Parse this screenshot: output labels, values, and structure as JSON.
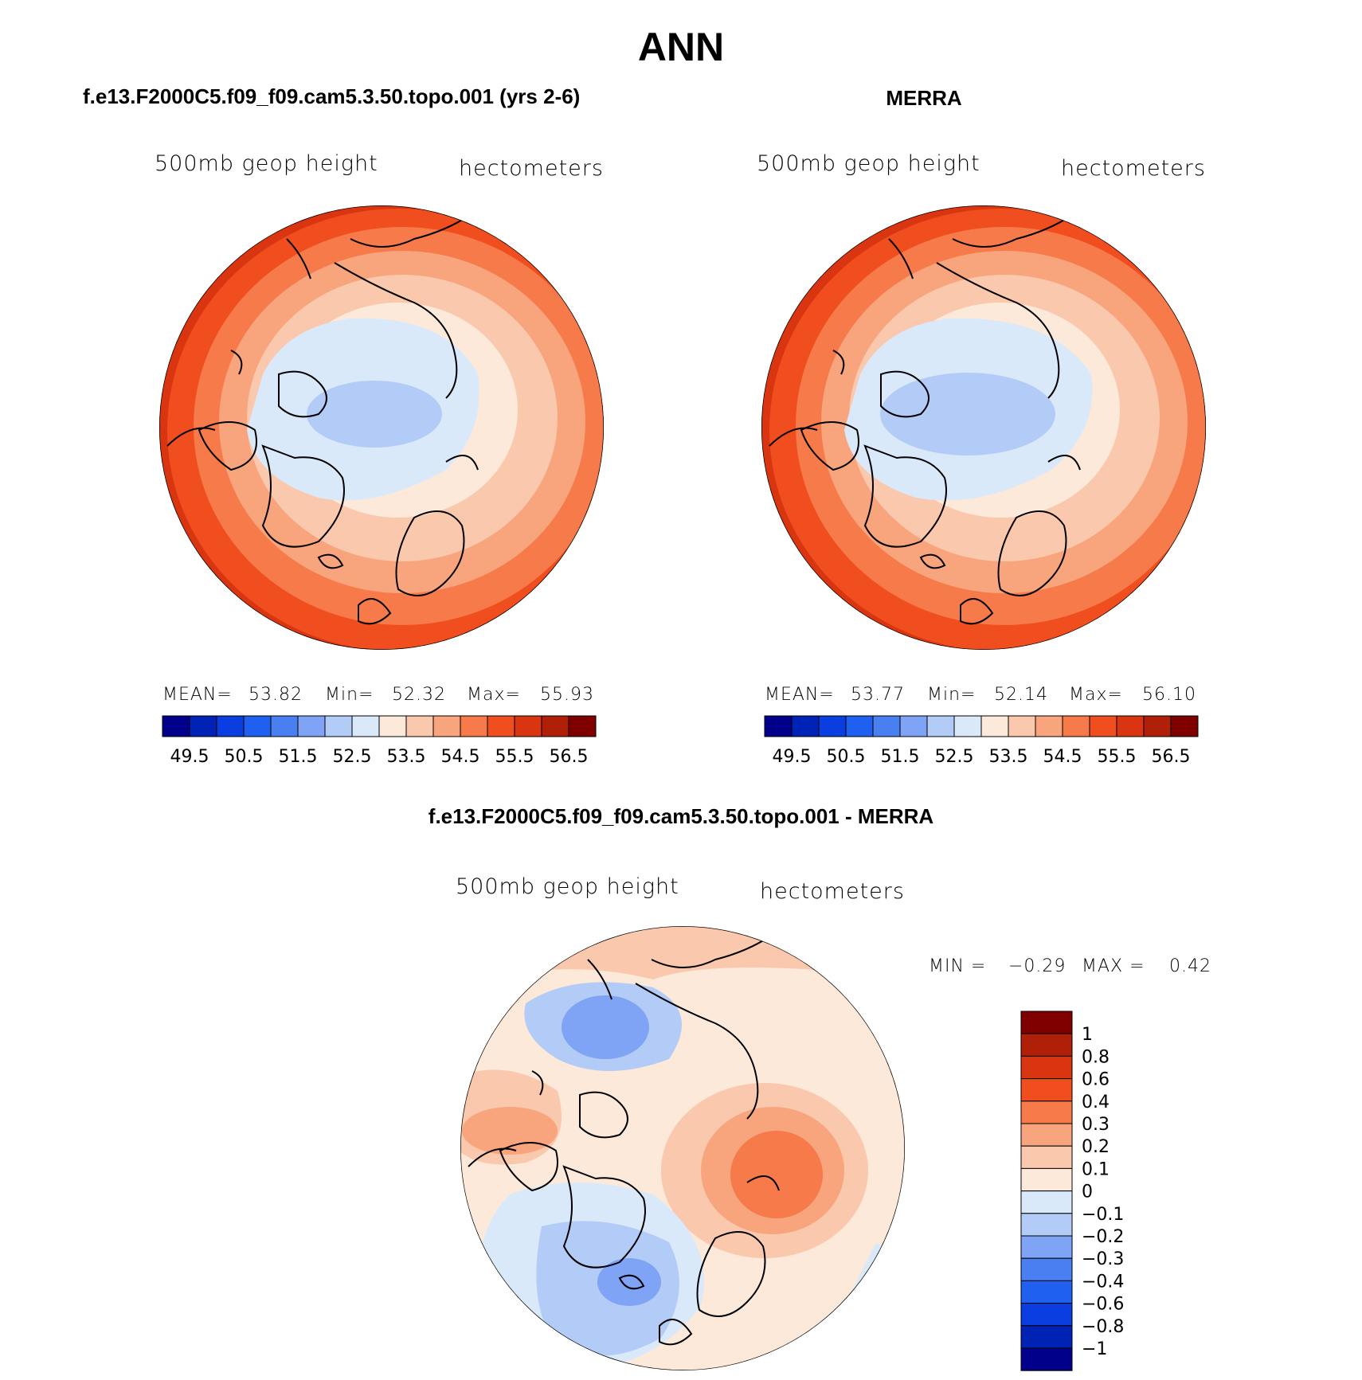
{
  "figure": {
    "title": "ANN"
  },
  "panels": [
    {
      "title": "f.e13.F2000C5.f09_f09.cam5.3.50.topo.001 (yrs 2-6)",
      "variable": "500mb geop height",
      "units": "hectometers",
      "stats": {
        "mean_label": "MEAN=",
        "mean": "53.82",
        "min_label": "Min=",
        "min": "52.32",
        "max_label": "Max=",
        "max": "55.93"
      }
    },
    {
      "title": "MERRA",
      "variable": "500mb geop height",
      "units": "hectometers",
      "stats": {
        "mean_label": "MEAN=",
        "mean": "53.77",
        "min_label": "Min=",
        "min": "52.14",
        "max_label": "Max=",
        "max": "56.10"
      }
    },
    {
      "title": "f.e13.F2000C5.f09_f09.cam5.3.50.topo.001 - MERRA",
      "variable": "500mb geop height",
      "units": "hectometers",
      "stats": {
        "min_label": "MIN =",
        "min": "−0.29",
        "max_label": "MAX =",
        "max": "0.42"
      }
    }
  ],
  "colorbar_abs": {
    "colors": [
      "#00008b",
      "#0022b5",
      "#0a3ee0",
      "#2060f0",
      "#4a7ff2",
      "#7fa3f5",
      "#b3cbf7",
      "#d9e9fa",
      "#fde9d9",
      "#fac8ad",
      "#f8a47d",
      "#f67a4a",
      "#f04e1e",
      "#d93510",
      "#b02008",
      "#800000"
    ],
    "labels": [
      "49.5",
      "50.5",
      "51.5",
      "52.5",
      "53.5",
      "54.5",
      "55.5",
      "56.5"
    ]
  },
  "colorbar_diff": {
    "colors": [
      "#00008b",
      "#0022b5",
      "#0a3ee0",
      "#2060f0",
      "#4a7ff2",
      "#7fa3f5",
      "#b3cbf7",
      "#d9e9fa",
      "#fde9d9",
      "#fac8ad",
      "#f8a47d",
      "#f67a4a",
      "#f04e1e",
      "#d93510",
      "#b02008",
      "#800000"
    ],
    "labels": [
      "1",
      "0.8",
      "0.6",
      "0.4",
      "0.3",
      "0.2",
      "0.1",
      "0",
      "−0.1",
      "−0.2",
      "−0.3",
      "−0.4",
      "−0.6",
      "−0.8",
      "−1"
    ]
  }
}
